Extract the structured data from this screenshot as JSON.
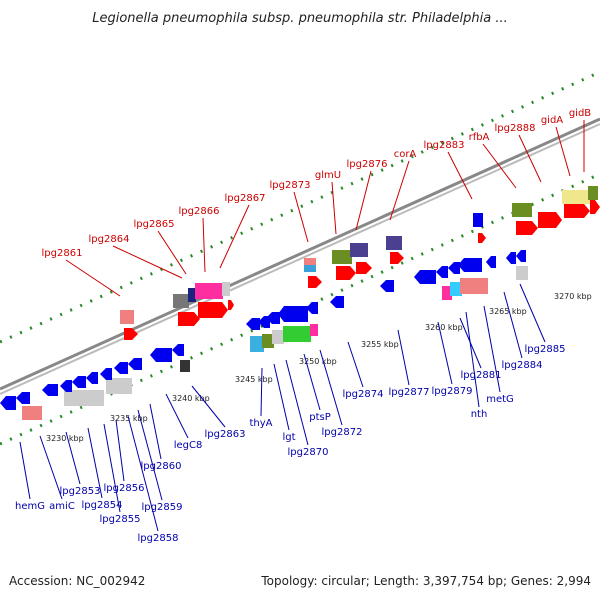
{
  "title": "Legionella pneumophila subsp. pneumophila str. Philadelphia ...",
  "footer": {
    "accession": "Accession: NC_002942",
    "stats": "Topology: circular; Length: 3,397,754 bp; Genes: 2,994"
  },
  "colors": {
    "backbone": "#8c8c8c",
    "forward_label": "#cc0000",
    "reverse_label": "#0000aa",
    "tick_dots": "#2a8a2a",
    "forward_gene": "#ff0000",
    "reverse_gene": "#0000ee"
  },
  "scale_labels": [
    "3230 kbp",
    "3235 kbp",
    "3240 kbp",
    "3245 kbp",
    "3250 kbp",
    "3255 kbp",
    "3260 kbp",
    "3265 kbp",
    "3270 kbp"
  ],
  "forward_labels": [
    "lpg2861",
    "lpg2864",
    "lpg2865",
    "lpg2866",
    "lpg2867",
    "lpg2873",
    "glmU",
    "lpg2876",
    "corA",
    "lpg2883",
    "rfbA",
    "lpg2888",
    "gidA",
    "gidB"
  ],
  "reverse_labels": [
    "hemG",
    "amiC",
    "lpg2853",
    "lpg2854",
    "lpg2855",
    "lpg2856",
    "lpg2858",
    "lpg2859",
    "lpg2860",
    "legC8",
    "lpg2863",
    "thyA",
    "lgt",
    "lpg2870",
    "ptsP",
    "lpg2872",
    "lpg2874",
    "lpg2877",
    "lpg2879",
    "lpg2881",
    "nth",
    "metG",
    "lpg2884",
    "lpg2885"
  ]
}
